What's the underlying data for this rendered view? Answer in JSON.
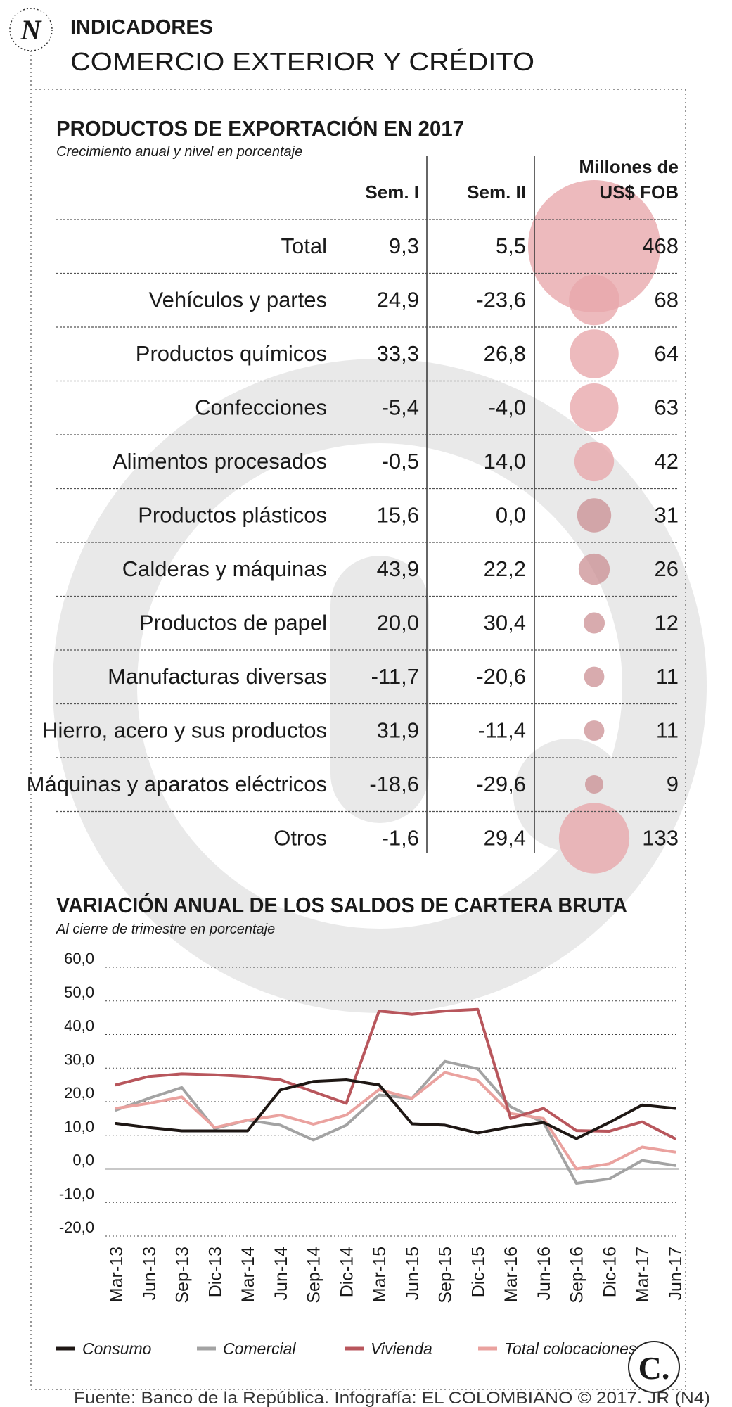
{
  "header": {
    "logo_letter": "N",
    "kicker": "INDICADORES",
    "title": "COMERCIO EXTERIOR  Y CRÉDITO"
  },
  "watermark_letter": "C",
  "footer": {
    "source": "Fuente: Banco de la República. Infografía: EL COLOMBIANO © 2017. JR (N4)",
    "brand_letter": "C."
  },
  "colors": {
    "ink": "#1a1a1a",
    "bubble_light": "#e8a7ab",
    "bubble_dark": "#c98a8f",
    "consumo": "#1e1714",
    "comercial": "#a3a3a3",
    "vivienda": "#b8565c",
    "total": "#eaa29f",
    "watermark": "#e7e7e7"
  },
  "chart_data": [
    {
      "type": "table",
      "title": "PRODUCTOS DE EXPORTACIÓN EN 2017",
      "subtitle": "Crecimiento anual y nivel en porcentaje",
      "columns": [
        "Sem. I",
        "Sem. II",
        "Millones de US$ FOB"
      ],
      "rows": [
        {
          "label": "Total",
          "sem1": "9,3",
          "sem2": "5,5",
          "fob": "468",
          "value": 468
        },
        {
          "label": "Vehículos y partes",
          "sem1": "24,9",
          "sem2": "-23,6",
          "fob": "68",
          "value": 68
        },
        {
          "label": "Productos químicos",
          "sem1": "33,3",
          "sem2": "26,8",
          "fob": "64",
          "value": 64
        },
        {
          "label": "Confecciones",
          "sem1": "-5,4",
          "sem2": "-4,0",
          "fob": "63",
          "value": 63
        },
        {
          "label": "Alimentos procesados",
          "sem1": "-0,5",
          "sem2": "14,0",
          "fob": "42",
          "value": 42
        },
        {
          "label": "Productos plásticos",
          "sem1": "15,6",
          "sem2": "0,0",
          "fob": "31",
          "value": 31
        },
        {
          "label": "Calderas y máquinas",
          "sem1": "43,9",
          "sem2": "22,2",
          "fob": "26",
          "value": 26
        },
        {
          "label": "Productos de papel",
          "sem1": "20,0",
          "sem2": "30,4",
          "fob": "12",
          "value": 12
        },
        {
          "label": "Manufacturas diversas",
          "sem1": "-11,7",
          "sem2": "-20,6",
          "fob": "11",
          "value": 11
        },
        {
          "label": "Hierro, acero y sus productos",
          "sem1": "31,9",
          "sem2": "-11,4",
          "fob": "11",
          "value": 11
        },
        {
          "label": "Máquinas y aparatos eléctricos",
          "sem1": "-18,6",
          "sem2": "-29,6",
          "fob": "9",
          "value": 9
        },
        {
          "label": "Otros",
          "sem1": "-1,6",
          "sem2": "29,4",
          "fob": "133",
          "value": 133
        }
      ]
    },
    {
      "type": "line",
      "title": "VARIACIÓN ANUAL DE LOS SALDOS DE CARTERA BRUTA",
      "subtitle": "Al cierre de trimestre en porcentaje",
      "categories": [
        "Mar-13",
        "Jun-13",
        "Sep-13",
        "Dic-13",
        "Mar-14",
        "Jun-14",
        "Sep-14",
        "Dic-14",
        "Mar-15",
        "Jun-15",
        "Sep-15",
        "Dic-15",
        "Mar-16",
        "Jun-16",
        "Sep-16",
        "Dic-16",
        "Mar-17",
        "Jun-17"
      ],
      "ylim": [
        -20,
        60
      ],
      "yticks": [
        60,
        50,
        40,
        30,
        20,
        10,
        0,
        -10,
        -20
      ],
      "ytick_labels": [
        "60,0",
        "50,0",
        "40,0",
        "30,0",
        "20,0",
        "10,0",
        "0,0",
        "-10,0",
        "-20,0"
      ],
      "series": [
        {
          "name": "Consumo",
          "key": "consumo",
          "values": [
            13.5,
            12.3,
            11.3,
            11.3,
            11.3,
            23.5,
            26.0,
            26.5,
            25.0,
            13.4,
            13.0,
            10.7,
            12.5,
            13.8,
            9.0,
            13.8,
            19.0,
            18.0
          ]
        },
        {
          "name": "Comercial",
          "key": "comercial",
          "values": [
            17.5,
            21.0,
            24.2,
            12.0,
            14.5,
            13.0,
            8.6,
            13.0,
            22.0,
            21.0,
            32.0,
            29.8,
            18.5,
            13.8,
            -4.3,
            -3.0,
            2.5,
            1.0
          ]
        },
        {
          "name": "Vivienda",
          "key": "vivienda",
          "values": [
            25.0,
            27.5,
            28.3,
            28.0,
            27.5,
            26.5,
            23.0,
            19.5,
            47.0,
            46.0,
            47.0,
            47.5,
            15.0,
            18.0,
            11.4,
            11.2,
            14.0,
            9.0
          ]
        },
        {
          "name": "Total colocaciones",
          "key": "total",
          "values": [
            18.0,
            19.5,
            21.4,
            12.3,
            14.5,
            16.0,
            13.3,
            16.0,
            23.6,
            21.0,
            28.7,
            26.3,
            16.5,
            15.0,
            0.0,
            1.5,
            6.5,
            5.0
          ]
        }
      ]
    }
  ]
}
